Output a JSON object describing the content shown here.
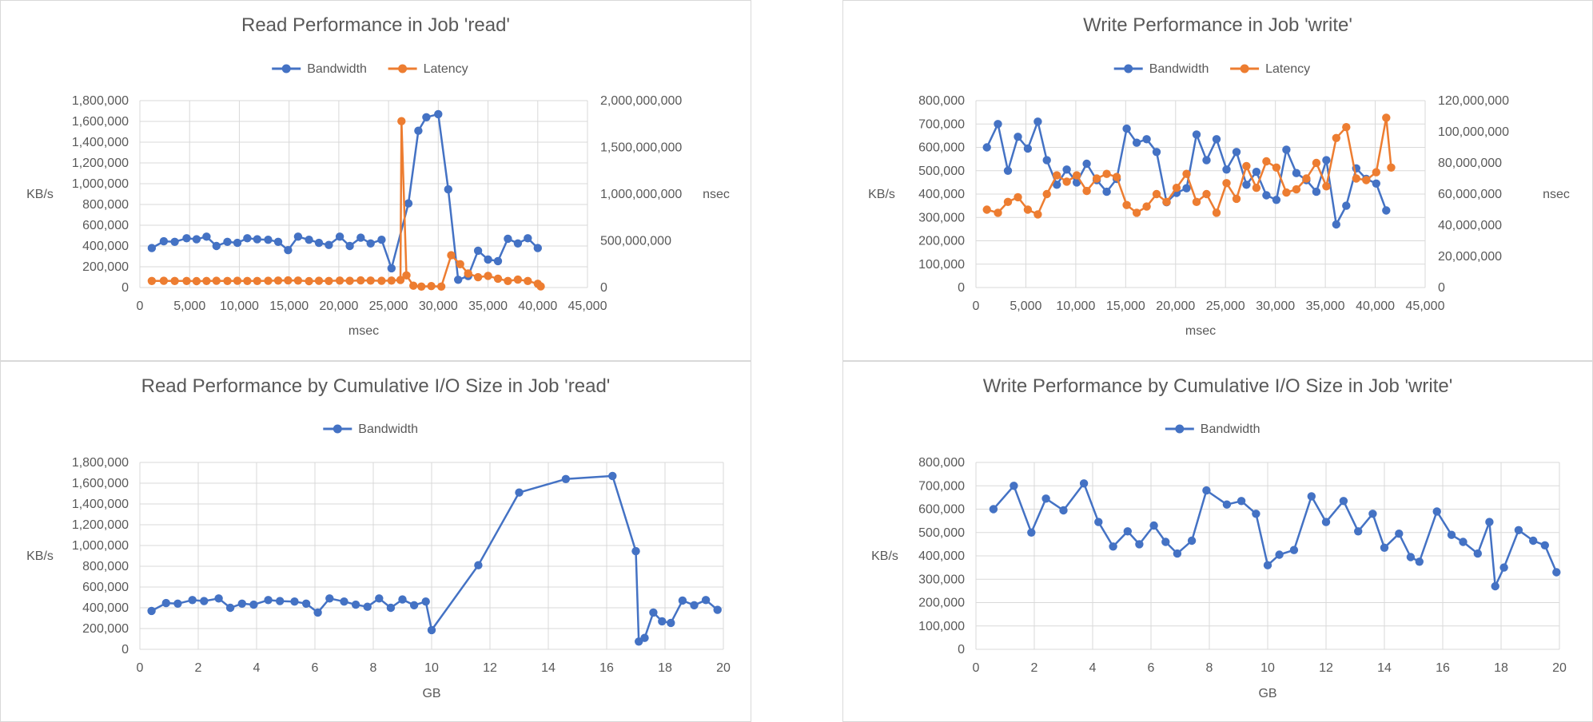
{
  "colors": {
    "bandwidth": "#4472C4",
    "latency": "#ED7D31",
    "grid": "#D9D9D9",
    "text": "#595959"
  },
  "chart_data": [
    {
      "type": "line",
      "title": "Read Performance in Job 'read'",
      "xlabel": "msec",
      "ylabel": "KB/s",
      "y2label": "nsec",
      "xlim": [
        0,
        45000
      ],
      "x_ticks": [
        0,
        5000,
        10000,
        15000,
        20000,
        25000,
        30000,
        35000,
        40000,
        45000
      ],
      "x_tick_labels": [
        "0",
        "5,000",
        "10,000",
        "15,000",
        "20,000",
        "25,000",
        "30,000",
        "35,000",
        "40,000",
        "45,000"
      ],
      "ylim": [
        0,
        1800000
      ],
      "y_ticks": [
        0,
        200000,
        400000,
        600000,
        800000,
        1000000,
        1200000,
        1400000,
        1600000,
        1800000
      ],
      "y_tick_labels": [
        "0",
        "200,000",
        "400,000",
        "600,000",
        "800,000",
        "1,000,000",
        "1,200,000",
        "1,400,000",
        "1,600,000",
        "1,800,000"
      ],
      "y2lim": [
        0,
        2000000000
      ],
      "y2_ticks": [
        0,
        500000000,
        1000000000,
        1500000000,
        2000000000
      ],
      "y2_tick_labels": [
        "0",
        "500,000,000",
        "1,000,000,000",
        "1,500,000,000",
        "2,000,000,000"
      ],
      "grid": true,
      "legend_position": "top",
      "series": [
        {
          "name": "Bandwidth",
          "axis": "y",
          "x": [
            1200,
            2400,
            3500,
            4700,
            5700,
            6700,
            7700,
            8800,
            9800,
            10800,
            11800,
            12900,
            13900,
            14900,
            15900,
            17000,
            18000,
            19000,
            20100,
            21100,
            22200,
            23200,
            24300,
            25300,
            27000,
            28000,
            28800,
            30000,
            31000,
            32000,
            33000,
            34000,
            35000,
            36000,
            37000,
            38000,
            39000,
            40000
          ],
          "y": [
            380000,
            445000,
            440000,
            475000,
            465000,
            490000,
            400000,
            440000,
            430000,
            475000,
            465000,
            460000,
            440000,
            360000,
            490000,
            460000,
            430000,
            410000,
            490000,
            400000,
            480000,
            425000,
            460000,
            185000,
            810000,
            1510000,
            1640000,
            1670000,
            945000,
            75000,
            110000,
            355000,
            270000,
            255000,
            470000,
            425000,
            475000,
            380000
          ]
        },
        {
          "name": "Latency",
          "axis": "y2",
          "x": [
            1200,
            2400,
            3500,
            4700,
            5700,
            6700,
            7700,
            8800,
            9800,
            10800,
            11800,
            12900,
            13900,
            14900,
            15900,
            17000,
            18000,
            19000,
            20100,
            21100,
            22200,
            23200,
            24300,
            25300,
            26200,
            26300,
            26800,
            27500,
            28300,
            29300,
            30300,
            31300,
            32200,
            33000,
            34000,
            35000,
            36000,
            37000,
            38000,
            39000,
            40000,
            40300
          ],
          "y": [
            70000000,
            72000000,
            70000000,
            70000000,
            68000000,
            70000000,
            72000000,
            70000000,
            72000000,
            70000000,
            70000000,
            72000000,
            74000000,
            76000000,
            74000000,
            68000000,
            72000000,
            70000000,
            74000000,
            72000000,
            76000000,
            74000000,
            72000000,
            74000000,
            80000000,
            1780000000,
            130000000,
            20000000,
            10000000,
            15000000,
            10000000,
            345000000,
            250000000,
            150000000,
            110000000,
            125000000,
            95000000,
            70000000,
            85000000,
            70000000,
            40000000,
            12000000
          ]
        }
      ]
    },
    {
      "type": "line",
      "title": "Write Performance in Job 'write'",
      "xlabel": "msec",
      "ylabel": "KB/s",
      "y2label": "nsec",
      "xlim": [
        0,
        45000
      ],
      "x_ticks": [
        0,
        5000,
        10000,
        15000,
        20000,
        25000,
        30000,
        35000,
        40000,
        45000
      ],
      "x_tick_labels": [
        "0",
        "5,000",
        "10,000",
        "15,000",
        "20,000",
        "25,000",
        "30,000",
        "35,000",
        "40,000",
        "45,000"
      ],
      "ylim": [
        0,
        800000
      ],
      "y_ticks": [
        0,
        100000,
        200000,
        300000,
        400000,
        500000,
        600000,
        700000,
        800000
      ],
      "y_tick_labels": [
        "0",
        "100,000",
        "200,000",
        "300,000",
        "400,000",
        "500,000",
        "600,000",
        "700,000",
        "800,000"
      ],
      "y2lim": [
        0,
        120000000
      ],
      "y2_ticks": [
        0,
        20000000,
        40000000,
        60000000,
        80000000,
        100000000,
        120000000
      ],
      "y2_tick_labels": [
        "0",
        "20,000,000",
        "40,000,000",
        "60,000,000",
        "80,000,000",
        "100,000,000",
        "120,000,000"
      ],
      "grid": true,
      "legend_position": "top",
      "series": [
        {
          "name": "Bandwidth",
          "axis": "y",
          "x": [
            1100,
            2200,
            3200,
            4200,
            5200,
            6200,
            7100,
            8100,
            9100,
            10100,
            11100,
            12100,
            13100,
            14100,
            15100,
            16100,
            17100,
            18100,
            19100,
            20100,
            21100,
            22100,
            23100,
            24100,
            25100,
            26100,
            27100,
            28100,
            29100,
            30100,
            31100,
            32100,
            33100,
            34100,
            35100,
            36100,
            37100,
            38100,
            39100,
            40100,
            41100
          ],
          "y": [
            600000,
            700000,
            500000,
            645000,
            595000,
            710000,
            545000,
            440000,
            505000,
            450000,
            530000,
            460000,
            410000,
            465000,
            680000,
            620000,
            635000,
            580000,
            365000,
            405000,
            425000,
            655000,
            545000,
            635000,
            505000,
            580000,
            440000,
            495000,
            395000,
            375000,
            590000,
            490000,
            460000,
            410000,
            545000,
            270000,
            350000,
            510000,
            465000,
            445000,
            330000
          ]
        },
        {
          "name": "Latency",
          "axis": "y2",
          "x": [
            1100,
            2200,
            3200,
            4200,
            5200,
            6200,
            7100,
            8100,
            9100,
            10100,
            11100,
            12100,
            13100,
            14100,
            15100,
            16100,
            17100,
            18100,
            19100,
            20100,
            21100,
            22100,
            23100,
            24100,
            25100,
            26100,
            27100,
            28100,
            29100,
            30100,
            31100,
            32100,
            33100,
            34100,
            35100,
            36100,
            37100,
            38100,
            39100,
            40100,
            41100,
            41600
          ],
          "y": [
            50000000,
            48000000,
            55000000,
            58000000,
            50000000,
            47000000,
            60000000,
            72000000,
            68000000,
            72000000,
            62000000,
            70000000,
            73000000,
            71000000,
            53000000,
            48000000,
            52000000,
            60000000,
            55000000,
            64000000,
            73000000,
            55000000,
            60000000,
            48000000,
            67000000,
            57000000,
            78000000,
            64000000,
            81000000,
            77000000,
            61000000,
            63000000,
            70000000,
            80000000,
            65000000,
            96000000,
            103000000,
            70000000,
            69000000,
            74000000,
            109000000,
            77000000
          ]
        }
      ]
    },
    {
      "type": "line",
      "title": "Read Performance by Cumulative I/O Size in Job 'read'",
      "xlabel": "GB",
      "ylabel": "KB/s",
      "xlim": [
        0,
        20
      ],
      "x_ticks": [
        0,
        2,
        4,
        6,
        8,
        10,
        12,
        14,
        16,
        18,
        20
      ],
      "x_tick_labels": [
        "0",
        "2",
        "4",
        "6",
        "8",
        "10",
        "12",
        "14",
        "16",
        "18",
        "20"
      ],
      "ylim": [
        0,
        1800000
      ],
      "y_ticks": [
        0,
        200000,
        400000,
        600000,
        800000,
        1000000,
        1200000,
        1400000,
        1600000,
        1800000
      ],
      "y_tick_labels": [
        "0",
        "200,000",
        "400,000",
        "600,000",
        "800,000",
        "1,000,000",
        "1,200,000",
        "1,400,000",
        "1,600,000",
        "1,800,000"
      ],
      "grid": true,
      "legend_position": "top",
      "series": [
        {
          "name": "Bandwidth",
          "axis": "y",
          "x": [
            0.4,
            0.9,
            1.3,
            1.8,
            2.2,
            2.7,
            3.1,
            3.5,
            3.9,
            4.4,
            4.8,
            5.3,
            5.7,
            6.1,
            6.5,
            7.0,
            7.4,
            7.8,
            8.2,
            8.6,
            9.0,
            9.4,
            9.8,
            10.0,
            11.6,
            13.0,
            14.6,
            16.2,
            17.0,
            17.1,
            17.3,
            17.6,
            17.9,
            18.2,
            18.6,
            19.0,
            19.4,
            19.8
          ],
          "y": [
            370000,
            445000,
            440000,
            475000,
            465000,
            490000,
            400000,
            440000,
            430000,
            475000,
            465000,
            460000,
            440000,
            355000,
            490000,
            460000,
            430000,
            410000,
            490000,
            400000,
            480000,
            425000,
            460000,
            185000,
            810000,
            1510000,
            1640000,
            1670000,
            945000,
            75000,
            110000,
            355000,
            270000,
            255000,
            470000,
            425000,
            475000,
            380000
          ]
        }
      ]
    },
    {
      "type": "line",
      "title": "Write Performance by Cumulative I/O Size in Job 'write'",
      "xlabel": "GB",
      "ylabel": "KB/s",
      "xlim": [
        0,
        20
      ],
      "x_ticks": [
        0,
        2,
        4,
        6,
        8,
        10,
        12,
        14,
        16,
        18,
        20
      ],
      "x_tick_labels": [
        "0",
        "2",
        "4",
        "6",
        "8",
        "10",
        "12",
        "14",
        "16",
        "18",
        "20"
      ],
      "ylim": [
        0,
        800000
      ],
      "y_ticks": [
        0,
        100000,
        200000,
        300000,
        400000,
        500000,
        600000,
        700000,
        800000
      ],
      "y_tick_labels": [
        "0",
        "100,000",
        "200,000",
        "300,000",
        "400,000",
        "500,000",
        "600,000",
        "700,000",
        "800,000"
      ],
      "grid": true,
      "legend_position": "top",
      "series": [
        {
          "name": "Bandwidth",
          "axis": "y",
          "x": [
            0.6,
            1.3,
            1.9,
            2.4,
            3.0,
            3.7,
            4.2,
            4.7,
            5.2,
            5.6,
            6.1,
            6.5,
            6.9,
            7.4,
            7.9,
            8.6,
            9.1,
            9.6,
            10.0,
            10.4,
            10.9,
            11.5,
            12.0,
            12.6,
            13.1,
            13.6,
            14.0,
            14.5,
            14.9,
            15.2,
            15.8,
            16.3,
            16.7,
            17.2,
            17.6,
            17.8,
            18.1,
            18.6,
            19.1,
            19.5,
            19.9
          ],
          "y": [
            600000,
            700000,
            500000,
            645000,
            595000,
            710000,
            545000,
            440000,
            505000,
            450000,
            530000,
            460000,
            410000,
            465000,
            680000,
            620000,
            635000,
            580000,
            360000,
            405000,
            425000,
            655000,
            545000,
            635000,
            505000,
            580000,
            435000,
            495000,
            395000,
            375000,
            590000,
            490000,
            460000,
            410000,
            545000,
            270000,
            350000,
            510000,
            465000,
            445000,
            330000
          ]
        }
      ]
    }
  ]
}
